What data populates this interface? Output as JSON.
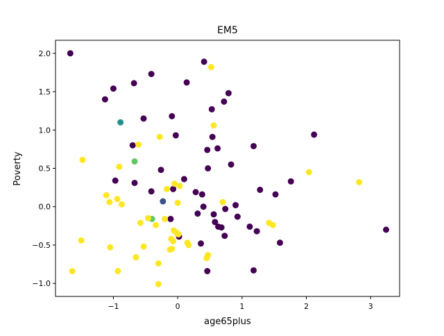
{
  "chart_data": {
    "type": "scatter",
    "title": "EM5",
    "xlabel": "age65plus",
    "ylabel": "Poverty",
    "xlim": [
      -1.9,
      3.45
    ],
    "ylim": [
      -1.17,
      2.17
    ],
    "x_ticks": [
      -1,
      0,
      1,
      2,
      3
    ],
    "y_ticks": [
      -1.0,
      -0.5,
      0.0,
      0.5,
      1.0,
      1.5,
      2.0
    ],
    "x_tick_labels": [
      "−1",
      "0",
      "1",
      "2",
      "3"
    ],
    "y_tick_labels": [
      "−1.0",
      "−0.5",
      "0.0",
      "0.5",
      "1.0",
      "1.5",
      "2.0"
    ],
    "grid": false,
    "colors": {
      "purple": "#440154",
      "blue": "#3b528b",
      "teal": "#21918c",
      "green": "#5ec962",
      "yellow": "#fde725"
    },
    "points": [
      {
        "x": -1.67,
        "y": 2.0,
        "color": "purple"
      },
      {
        "x": -1.0,
        "y": 1.54,
        "color": "purple"
      },
      {
        "x": -0.68,
        "y": 1.61,
        "color": "purple"
      },
      {
        "x": -0.41,
        "y": 1.73,
        "color": "purple"
      },
      {
        "x": -1.13,
        "y": 1.4,
        "color": "purple"
      },
      {
        "x": -0.53,
        "y": 1.15,
        "color": "purple"
      },
      {
        "x": -0.09,
        "y": 1.18,
        "color": "purple"
      },
      {
        "x": 0.14,
        "y": 1.62,
        "color": "purple"
      },
      {
        "x": 0.41,
        "y": 1.89,
        "color": "purple"
      },
      {
        "x": 0.53,
        "y": 1.27,
        "color": "purple"
      },
      {
        "x": 0.72,
        "y": 1.37,
        "color": "purple"
      },
      {
        "x": 0.79,
        "y": 1.48,
        "color": "purple"
      },
      {
        "x": -0.7,
        "y": 0.8,
        "color": "purple"
      },
      {
        "x": -0.03,
        "y": 0.93,
        "color": "purple"
      },
      {
        "x": 0.54,
        "y": 0.91,
        "color": "purple"
      },
      {
        "x": 0.46,
        "y": 0.74,
        "color": "purple"
      },
      {
        "x": 0.62,
        "y": 0.76,
        "color": "purple"
      },
      {
        "x": 1.18,
        "y": 0.79,
        "color": "purple"
      },
      {
        "x": 2.12,
        "y": 0.94,
        "color": "purple"
      },
      {
        "x": -0.97,
        "y": 0.34,
        "color": "purple"
      },
      {
        "x": -0.67,
        "y": 0.31,
        "color": "purple"
      },
      {
        "x": -0.26,
        "y": 0.48,
        "color": "purple"
      },
      {
        "x": 0.1,
        "y": 0.36,
        "color": "purple"
      },
      {
        "x": 0.47,
        "y": 0.5,
        "color": "purple"
      },
      {
        "x": 0.83,
        "y": 0.55,
        "color": "purple"
      },
      {
        "x": -0.41,
        "y": 0.2,
        "color": "purple"
      },
      {
        "x": -0.07,
        "y": 0.23,
        "color": "purple"
      },
      {
        "x": 0.28,
        "y": 0.19,
        "color": "purple"
      },
      {
        "x": 0.38,
        "y": 0.16,
        "color": "purple"
      },
      {
        "x": 1.28,
        "y": 0.22,
        "color": "purple"
      },
      {
        "x": 1.52,
        "y": 0.16,
        "color": "purple"
      },
      {
        "x": 1.76,
        "y": 0.33,
        "color": "purple"
      },
      {
        "x": 0.4,
        "y": 0.0,
        "color": "purple"
      },
      {
        "x": 0.74,
        "y": -0.03,
        "color": "purple"
      },
      {
        "x": 0.9,
        "y": 0.02,
        "color": "purple"
      },
      {
        "x": 0.31,
        "y": -0.09,
        "color": "purple"
      },
      {
        "x": 0.56,
        "y": -0.1,
        "color": "purple"
      },
      {
        "x": 0.93,
        "y": -0.13,
        "color": "purple"
      },
      {
        "x": -0.11,
        "y": -0.16,
        "color": "purple"
      },
      {
        "x": 0.58,
        "y": -0.2,
        "color": "purple"
      },
      {
        "x": 0.63,
        "y": -0.26,
        "color": "purple"
      },
      {
        "x": 0.68,
        "y": -0.27,
        "color": "purple"
      },
      {
        "x": 1.12,
        "y": -0.26,
        "color": "purple"
      },
      {
        "x": 1.23,
        "y": -0.32,
        "color": "purple"
      },
      {
        "x": 3.24,
        "y": -0.3,
        "color": "purple"
      },
      {
        "x": 0.73,
        "y": -0.38,
        "color": "purple"
      },
      {
        "x": 0.02,
        "y": -0.39,
        "color": "purple"
      },
      {
        "x": 0.36,
        "y": -0.48,
        "color": "purple"
      },
      {
        "x": 1.59,
        "y": -0.47,
        "color": "purple"
      },
      {
        "x": 1.18,
        "y": -0.83,
        "color": "purple"
      },
      {
        "x": 0.46,
        "y": -0.84,
        "color": "purple"
      },
      {
        "x": -0.23,
        "y": 0.07,
        "color": "blue"
      },
      {
        "x": -0.89,
        "y": 1.1,
        "color": "teal"
      },
      {
        "x": -0.67,
        "y": 0.59,
        "color": "green"
      },
      {
        "x": -0.4,
        "y": -0.16,
        "color": "green"
      },
      {
        "x": 0.52,
        "y": 1.82,
        "color": "yellow"
      },
      {
        "x": 0.56,
        "y": 1.06,
        "color": "yellow"
      },
      {
        "x": -0.61,
        "y": 0.81,
        "color": "yellow"
      },
      {
        "x": -0.28,
        "y": 0.91,
        "color": "yellow"
      },
      {
        "x": -1.48,
        "y": 0.61,
        "color": "yellow"
      },
      {
        "x": -0.91,
        "y": 0.52,
        "color": "yellow"
      },
      {
        "x": 2.04,
        "y": 0.45,
        "color": "yellow"
      },
      {
        "x": 2.82,
        "y": 0.32,
        "color": "yellow"
      },
      {
        "x": -0.05,
        "y": 0.3,
        "color": "yellow"
      },
      {
        "x": 0.03,
        "y": 0.27,
        "color": "yellow"
      },
      {
        "x": -0.17,
        "y": 0.23,
        "color": "yellow"
      },
      {
        "x": -1.11,
        "y": 0.15,
        "color": "yellow"
      },
      {
        "x": -0.94,
        "y": 0.1,
        "color": "yellow"
      },
      {
        "x": -1.06,
        "y": 0.06,
        "color": "yellow"
      },
      {
        "x": -0.87,
        "y": 0.03,
        "color": "yellow"
      },
      {
        "x": 0.0,
        "y": 0.05,
        "color": "yellow"
      },
      {
        "x": 0.7,
        "y": 0.06,
        "color": "yellow"
      },
      {
        "x": -0.46,
        "y": -0.15,
        "color": "yellow"
      },
      {
        "x": -0.2,
        "y": -0.16,
        "color": "yellow"
      },
      {
        "x": -0.58,
        "y": -0.21,
        "color": "yellow"
      },
      {
        "x": -0.34,
        "y": -0.24,
        "color": "yellow"
      },
      {
        "x": 1.42,
        "y": -0.21,
        "color": "yellow"
      },
      {
        "x": 1.48,
        "y": -0.24,
        "color": "yellow"
      },
      {
        "x": -0.06,
        "y": -0.31,
        "color": "yellow"
      },
      {
        "x": -0.02,
        "y": -0.34,
        "color": "yellow"
      },
      {
        "x": 0.01,
        "y": -0.36,
        "color": "yellow"
      },
      {
        "x": -0.1,
        "y": -0.42,
        "color": "yellow"
      },
      {
        "x": -0.07,
        "y": -0.45,
        "color": "yellow"
      },
      {
        "x": 0.15,
        "y": -0.47,
        "color": "yellow"
      },
      {
        "x": 0.17,
        "y": -0.5,
        "color": "yellow"
      },
      {
        "x": -1.5,
        "y": -0.44,
        "color": "yellow"
      },
      {
        "x": -0.53,
        "y": -0.52,
        "color": "yellow"
      },
      {
        "x": -1.05,
        "y": -0.53,
        "color": "yellow"
      },
      {
        "x": -0.12,
        "y": -0.56,
        "color": "yellow"
      },
      {
        "x": -0.09,
        "y": -0.55,
        "color": "yellow"
      },
      {
        "x": 0.47,
        "y": -0.63,
        "color": "yellow"
      },
      {
        "x": 0.45,
        "y": -0.67,
        "color": "yellow"
      },
      {
        "x": -0.65,
        "y": -0.66,
        "color": "yellow"
      },
      {
        "x": -0.3,
        "y": -0.74,
        "color": "yellow"
      },
      {
        "x": -1.64,
        "y": -0.84,
        "color": "yellow"
      },
      {
        "x": -0.93,
        "y": -0.84,
        "color": "yellow"
      },
      {
        "x": -0.3,
        "y": -1.01,
        "color": "yellow"
      }
    ]
  }
}
